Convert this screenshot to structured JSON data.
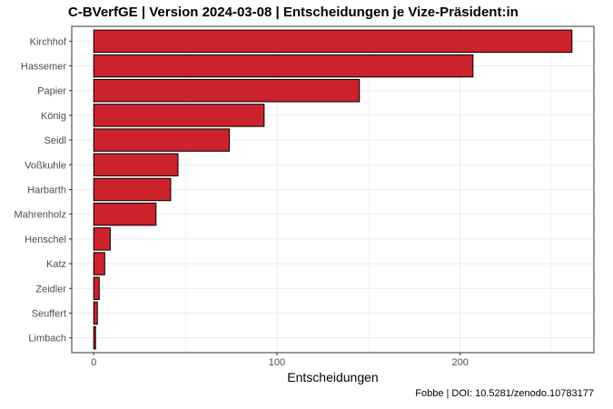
{
  "title": "C-BVerfGE | Version 2024-03-08 | Entscheidungen je Vize-Präsident:in",
  "caption": "Fobbe | DOI: 10.5281/zenodo.10783177",
  "colors": {
    "bar_fill": "#cc222b",
    "bar_stroke": "#000000",
    "grid": "#ebebeb",
    "panel_border": "#333333"
  },
  "chart_data": {
    "type": "bar",
    "orientation": "horizontal",
    "title": "C-BVerfGE | Version 2024-03-08 | Entscheidungen je Vize-Präsident:in",
    "xlabel": "Entscheidungen",
    "ylabel": "",
    "categories": [
      "Kirchhof",
      "Hassemer",
      "Papier",
      "König",
      "Seidl",
      "Voßkuhle",
      "Harbarth",
      "Mahrenholz",
      "Henschel",
      "Katz",
      "Zeidler",
      "Seuffert",
      "Limbach"
    ],
    "values": [
      261,
      207,
      145,
      93,
      74,
      46,
      42,
      34,
      9,
      6,
      3,
      2,
      1
    ],
    "xlim": [
      -12,
      273
    ],
    "xticks": [
      0,
      100,
      200
    ],
    "grid": true,
    "legend": "none"
  }
}
